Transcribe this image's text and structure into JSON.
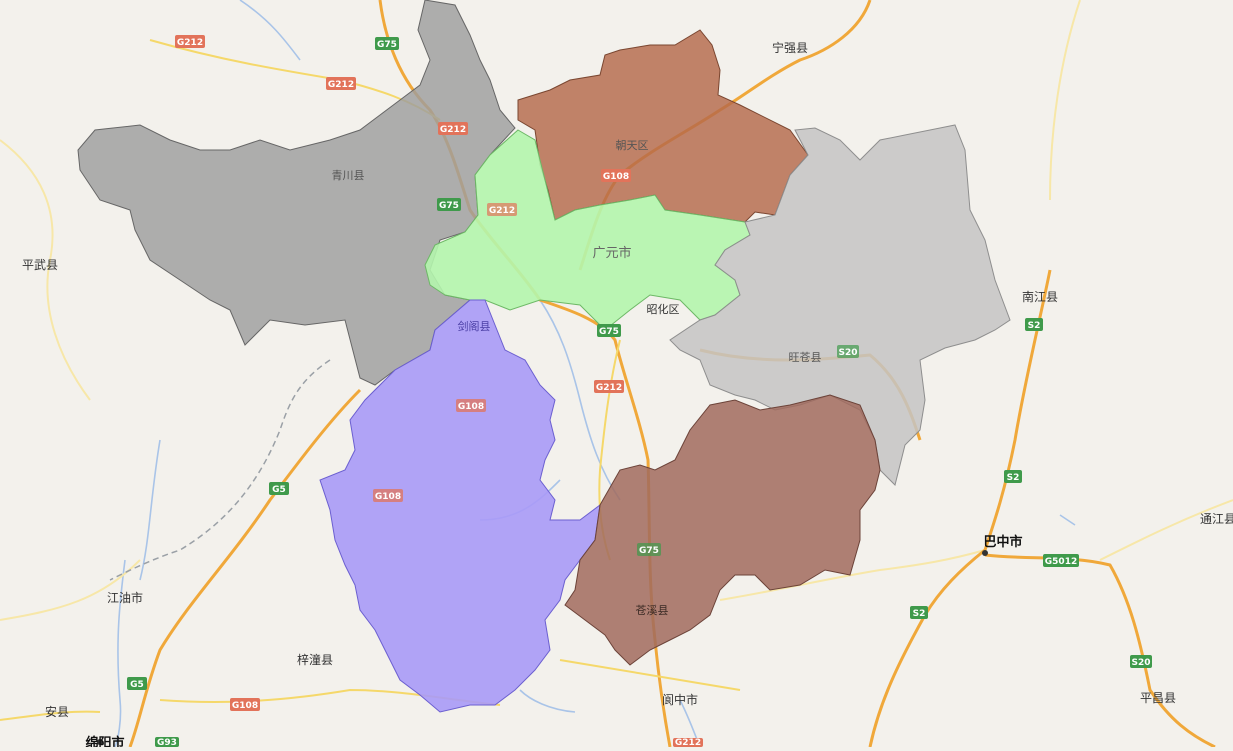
{
  "colors": {
    "background": "#f3f1ec",
    "qingchuan": "#9e9e9e",
    "chaotian": "#b5694a",
    "lizhou": "#b4f5ad",
    "wangcang": "#c4c4c4",
    "jiange": "#a99af7",
    "cangxi": "#a16b5e",
    "highway_national": "#f0a83a",
    "highway_provincial": "#f5d86a"
  },
  "regions": [
    {
      "id": "qingchuan",
      "label": "青川县"
    },
    {
      "id": "chaotian",
      "label": "朝天区"
    },
    {
      "id": "lizhou",
      "label": "广元市"
    },
    {
      "id": "zhaohua",
      "label": "昭化区"
    },
    {
      "id": "wangcang",
      "label": "旺苍县"
    },
    {
      "id": "jiange",
      "label": "剑阁县"
    },
    {
      "id": "cangxi",
      "label": "苍溪县"
    }
  ],
  "places": {
    "ningqiang": "宁强县",
    "pingwu": "平武县",
    "nanjiang": "南江县",
    "bazhong": "巴中市",
    "tongjiang": "通江县",
    "jiangyou": "江油市",
    "zitong": "梓潼县",
    "anxian": "安县",
    "mianyang": "绵阳市",
    "langzhong": "阆中市",
    "pingchang": "平昌县"
  },
  "road_shields": {
    "g212_a": "G212",
    "g212_b": "G212",
    "g212_c": "G212",
    "g212_d": "G212",
    "g212_e": "G212",
    "g75_a": "G75",
    "g75_b": "G75",
    "g75_c": "G75",
    "g75_d": "G75",
    "g108_a": "G108",
    "g108_b": "G108",
    "g108_c": "G108",
    "g108_d": "G108",
    "g5_a": "G5",
    "g5_b": "G5",
    "g93": "G93",
    "s2_a": "S2",
    "s2_b": "S2",
    "s2_c": "S2",
    "s20_a": "S20",
    "s20_b": "S20",
    "g5012": "G5012",
    "g212_f": "G212"
  }
}
